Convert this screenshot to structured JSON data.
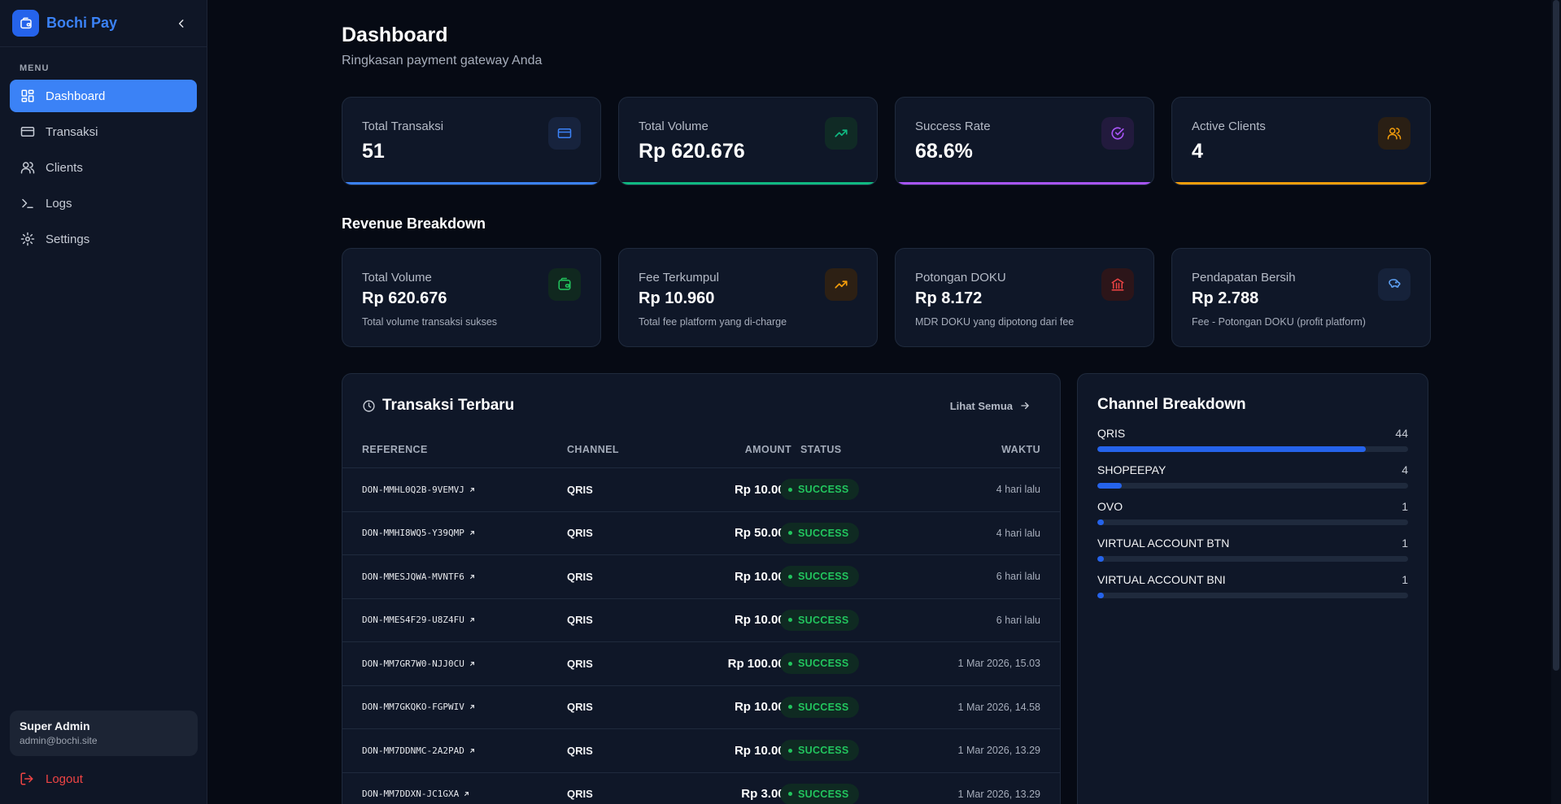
{
  "brand": {
    "name": "Bochi Pay"
  },
  "sidebar": {
    "menu_label": "MENU",
    "items": [
      {
        "label": "Dashboard",
        "icon": "layout-dashboard-icon",
        "active": true
      },
      {
        "label": "Transaksi",
        "icon": "credit-card-icon",
        "active": false
      },
      {
        "label": "Clients",
        "icon": "users-icon",
        "active": false
      },
      {
        "label": "Logs",
        "icon": "terminal-icon",
        "active": false
      },
      {
        "label": "Settings",
        "icon": "gear-icon",
        "active": false
      }
    ],
    "user": {
      "name": "Super Admin",
      "email": "admin@bochi.site"
    },
    "logout_label": "Logout"
  },
  "header": {
    "title": "Dashboard",
    "subtitle": "Ringkasan payment gateway Anda"
  },
  "stats": [
    {
      "label": "Total Transaksi",
      "value": "51",
      "icon": "credit-card-icon",
      "accent": "#3b82f6"
    },
    {
      "label": "Total Volume",
      "value": "Rp 620.676",
      "icon": "trending-up-icon",
      "accent": "#10b981"
    },
    {
      "label": "Success Rate",
      "value": "68.6%",
      "icon": "check-circle-icon",
      "accent": "#a855f7"
    },
    {
      "label": "Active Clients",
      "value": "4",
      "icon": "users-icon",
      "accent": "#f59e0b"
    }
  ],
  "revenue": {
    "title": "Revenue Breakdown",
    "cards": [
      {
        "label": "Total Volume",
        "value": "Rp 620.676",
        "desc": "Total volume transaksi sukses",
        "icon": "wallet-icon",
        "accent": "#22c55e"
      },
      {
        "label": "Fee Terkumpul",
        "value": "Rp 10.960",
        "desc": "Total fee platform yang di-charge",
        "icon": "trending-up-icon",
        "accent": "#f59e0b"
      },
      {
        "label": "Potongan DOKU",
        "value": "Rp 8.172",
        "desc": "MDR DOKU yang dipotong dari fee",
        "icon": "bank-icon",
        "accent": "#ef4444"
      },
      {
        "label": "Pendapatan Bersih",
        "value": "Rp 2.788",
        "desc": "Fee - Potongan DOKU (profit platform)",
        "icon": "piggy-bank-icon",
        "accent": "#60a5fa"
      }
    ]
  },
  "transactions": {
    "title": "Transaksi Terbaru",
    "see_all": "Lihat Semua",
    "columns": {
      "reference": "REFERENCE",
      "channel": "CHANNEL",
      "amount": "AMOUNT",
      "status": "STATUS",
      "time": "WAKTU"
    },
    "rows": [
      {
        "reference": "DON-MMHL0Q2B-9VEMVJ",
        "channel": "QRIS",
        "amount": "Rp 10.000",
        "status": "SUCCESS",
        "time": "4 hari lalu"
      },
      {
        "reference": "DON-MMHI8WQ5-Y39QMP",
        "channel": "QRIS",
        "amount": "Rp 50.000",
        "status": "SUCCESS",
        "time": "4 hari lalu"
      },
      {
        "reference": "DON-MMESJQWA-MVNTF6",
        "channel": "QRIS",
        "amount": "Rp 10.000",
        "status": "SUCCESS",
        "time": "6 hari lalu"
      },
      {
        "reference": "DON-MMES4F29-U8Z4FU",
        "channel": "QRIS",
        "amount": "Rp 10.000",
        "status": "SUCCESS",
        "time": "6 hari lalu"
      },
      {
        "reference": "DON-MM7GR7W0-NJJ0CU",
        "channel": "QRIS",
        "amount": "Rp 100.000",
        "status": "SUCCESS",
        "time": "1 Mar 2026, 15.03"
      },
      {
        "reference": "DON-MM7GKQKO-FGPWIV",
        "channel": "QRIS",
        "amount": "Rp 10.000",
        "status": "SUCCESS",
        "time": "1 Mar 2026, 14.58"
      },
      {
        "reference": "DON-MM7DDNMC-2A2PAD",
        "channel": "QRIS",
        "amount": "Rp 10.000",
        "status": "SUCCESS",
        "time": "1 Mar 2026, 13.29"
      },
      {
        "reference": "DON-MM7DDXN-JC1GXA",
        "channel": "QRIS",
        "amount": "Rp 3.000",
        "status": "SUCCESS",
        "time": "1 Mar 2026, 13.29"
      }
    ]
  },
  "channels": {
    "title": "Channel Breakdown",
    "items": [
      {
        "name": "QRIS",
        "count": "44",
        "fraction": 0.8627
      },
      {
        "name": "SHOPEEPAY",
        "count": "4",
        "fraction": 0.0784
      },
      {
        "name": "OVO",
        "count": "1",
        "fraction": 0.0196
      },
      {
        "name": "VIRTUAL ACCOUNT BTN",
        "count": "1",
        "fraction": 0.0196
      },
      {
        "name": "VIRTUAL ACCOUNT BNI",
        "count": "1",
        "fraction": 0.0196
      }
    ]
  }
}
